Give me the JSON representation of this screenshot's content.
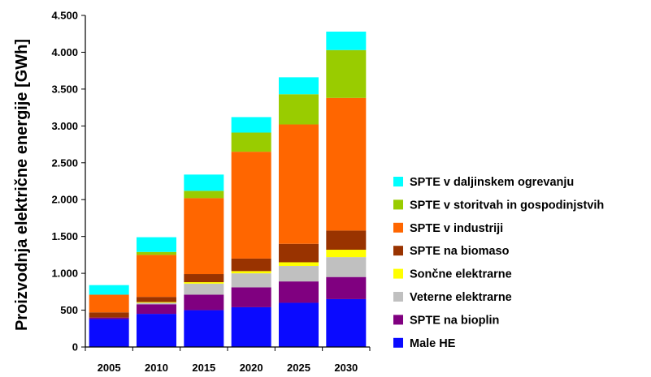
{
  "chart_data": {
    "type": "bar",
    "stacked": true,
    "title": "",
    "xlabel": "",
    "ylabel": "Proizvodnja električne energije [GWh]",
    "ylim": [
      0,
      4500
    ],
    "yticks": [
      0,
      500,
      1000,
      1500,
      2000,
      2500,
      3000,
      3500,
      4000,
      4500
    ],
    "ytick_labels": [
      "0",
      "500",
      "1.000",
      "1.500",
      "2.000",
      "2.500",
      "3.000",
      "3.500",
      "4.000",
      "4.500"
    ],
    "grid": false,
    "legend_position": "right",
    "categories": [
      "2005",
      "2010",
      "2015",
      "2020",
      "2025",
      "2030"
    ],
    "series": [
      {
        "name": "Male HE",
        "color": "#0a0aff",
        "values": [
          380,
          450,
          500,
          540,
          600,
          650
        ]
      },
      {
        "name": "SPTE na bioplin",
        "color": "#800080",
        "values": [
          20,
          130,
          210,
          270,
          290,
          300
        ]
      },
      {
        "name": "Veterne elektrarne",
        "color": "#c0c0c0",
        "values": [
          0,
          20,
          150,
          190,
          210,
          270
        ]
      },
      {
        "name": "Sončne elektrarne",
        "color": "#ffff00",
        "values": [
          0,
          10,
          20,
          30,
          50,
          100
        ]
      },
      {
        "name": "SPTE na biomaso",
        "color": "#993300",
        "values": [
          70,
          70,
          110,
          170,
          250,
          260
        ]
      },
      {
        "name": "SPTE v industriji",
        "color": "#ff6600",
        "values": [
          240,
          570,
          1030,
          1450,
          1620,
          1800
        ]
      },
      {
        "name": "SPTE v storitvah in gospodinjstvih",
        "color": "#99cc00",
        "values": [
          0,
          40,
          100,
          260,
          410,
          650
        ]
      },
      {
        "name": "SPTE v daljinskem ogrevanju",
        "color": "#00ffff",
        "values": [
          130,
          200,
          220,
          210,
          230,
          250
        ]
      }
    ]
  }
}
